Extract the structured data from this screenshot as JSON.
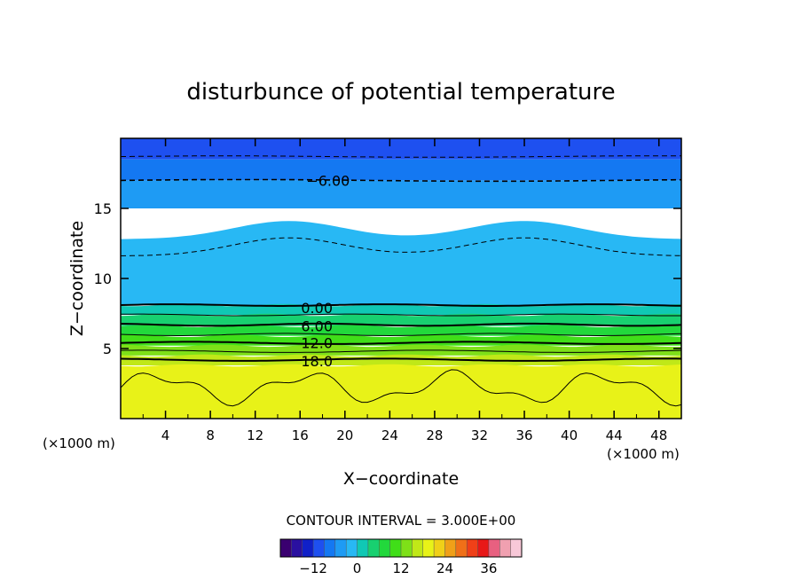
{
  "chart_data": {
    "type": "heatmap",
    "title": "disturbunce of potential temperature",
    "xlabel": "X−coordinate",
    "ylabel": "Z−coordinate",
    "x_unit_left": "(×1000 m)",
    "x_unit_right": "(×1000 m)",
    "xlim": [
      0,
      50
    ],
    "ylim": [
      0,
      20
    ],
    "x_ticks": [
      "4",
      "8",
      "12",
      "16",
      "20",
      "24",
      "28",
      "32",
      "36",
      "40",
      "44",
      "48"
    ],
    "y_ticks": [
      "5",
      "10",
      "15"
    ],
    "contour_interval_label": "CONTOUR INTERVAL = 3.000E+00",
    "contour_interval": 3.0,
    "contour_labels": [
      {
        "text": "−6.00",
        "x": 18.5,
        "z": 17.0
      },
      {
        "text": "0.00",
        "x": 17.5,
        "z": 7.9
      },
      {
        "text": "6.00",
        "x": 17.5,
        "z": 6.6
      },
      {
        "text": "12.0",
        "x": 17.5,
        "z": 5.4
      },
      {
        "text": "18.0",
        "x": 17.5,
        "z": 4.1
      }
    ],
    "layers": [
      {
        "z_from": 18.5,
        "z_to": 20,
        "value": -10.5,
        "color": "#1e50f0"
      },
      {
        "z_from": 17.0,
        "z_to": 18.5,
        "value": -7.5,
        "color": "#1478f2"
      },
      {
        "z_from": 15.0,
        "z_to": 17.0,
        "value": -4.5,
        "color": "#1e9bf4"
      },
      {
        "z_from": 8.1,
        "z_to": 15.0,
        "value": -1.5,
        "color": "#28b8f4"
      },
      {
        "z_from": 7.4,
        "z_to": 8.1,
        "value": 1.5,
        "color": "#10c8b4"
      },
      {
        "z_from": 6.6,
        "z_to": 7.4,
        "value": 4.5,
        "color": "#18d070"
      },
      {
        "z_from": 5.9,
        "z_to": 6.6,
        "value": 7.5,
        "color": "#22d83c"
      },
      {
        "z_from": 5.2,
        "z_to": 5.9,
        "value": 10.5,
        "color": "#40de18"
      },
      {
        "z_from": 4.5,
        "z_to": 5.2,
        "value": 13.5,
        "color": "#7ee018"
      },
      {
        "z_from": 3.8,
        "z_to": 4.5,
        "value": 16.5,
        "color": "#c0e818"
      },
      {
        "z_from": 0.0,
        "z_to": 3.8,
        "value": 19.5,
        "color": "#e8f218"
      }
    ],
    "colorbar": {
      "ticks": [
        "−12",
        "0",
        "12",
        "24",
        "36"
      ],
      "min": -21,
      "max": 45,
      "colors": [
        "#3a0070",
        "#2a10a0",
        "#1020c8",
        "#1e50f0",
        "#1478f2",
        "#1e9bf4",
        "#28b8f4",
        "#10c8b4",
        "#18d070",
        "#22d83c",
        "#40de18",
        "#7ee018",
        "#c0e818",
        "#e8f218",
        "#f0d018",
        "#f0a018",
        "#f07018",
        "#f04018",
        "#e81818",
        "#e86080",
        "#f0a0b0",
        "#f8c8d8"
      ]
    }
  }
}
